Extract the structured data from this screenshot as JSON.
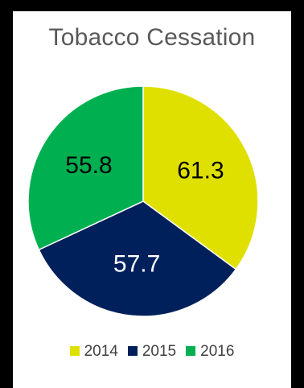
{
  "chart_data": {
    "type": "pie",
    "title": "Tobacco Cessation",
    "categories": [
      "2014",
      "2015",
      "2016"
    ],
    "values": [
      61.3,
      57.7,
      55.8
    ],
    "colors": [
      "#e0e000",
      "#00205b",
      "#00b050"
    ],
    "data_label_colors": [
      "#000000",
      "#ffffff",
      "#000000"
    ],
    "legend_position": "bottom"
  }
}
